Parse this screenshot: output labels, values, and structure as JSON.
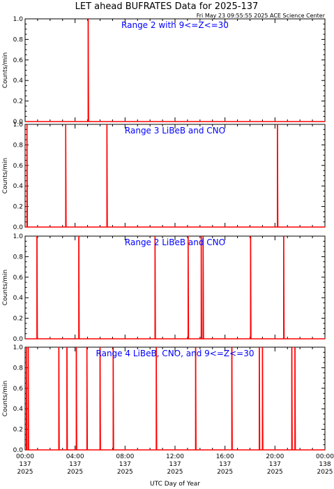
{
  "title": "LET ahead BUFRATES Data for 2025-137",
  "timestamp": "Fri May 23 09:55:55 2025 ACE Science Center",
  "chart_data": [
    {
      "type": "line",
      "panel_label": "Range 2 with 9<=Z<=30",
      "ylabel": "Counts/min",
      "ylim": [
        0,
        1.0
      ],
      "yticks": [
        "0.0",
        "0.2",
        "0.4",
        "0.6",
        "0.8",
        "1.0"
      ],
      "xlim_hours": [
        0,
        24
      ],
      "spikes": [
        {
          "hour": 5.05,
          "value": 1.0
        }
      ],
      "color": "#ff0000"
    },
    {
      "type": "line",
      "panel_label": "Range 3 LiBeB and CNO",
      "ylabel": "Counts/min",
      "ylim": [
        0,
        1.0
      ],
      "yticks": [
        "0.0",
        "0.2",
        "0.4",
        "0.6",
        "0.8",
        "1.0"
      ],
      "xlim_hours": [
        0,
        24
      ],
      "spikes": [
        {
          "hour": 0.15,
          "value": 1.0
        },
        {
          "hour": 3.25,
          "value": 1.0
        },
        {
          "hour": 6.55,
          "value": 1.0
        },
        {
          "hour": 20.2,
          "value": 1.0
        }
      ],
      "color": "#ff0000"
    },
    {
      "type": "line",
      "panel_label": "Range 2 LiBeB and CNO",
      "ylabel": "Counts/min",
      "ylim": [
        0,
        1.0
      ],
      "yticks": [
        "0.0",
        "0.2",
        "0.4",
        "0.6",
        "0.8",
        "1.0"
      ],
      "xlim_hours": [
        0,
        24
      ],
      "spikes": [
        {
          "hour": 0.95,
          "value": 1.0
        },
        {
          "hour": 4.3,
          "value": 1.0
        },
        {
          "hour": 10.4,
          "value": 1.0
        },
        {
          "hour": 13.05,
          "value": 1.0
        },
        {
          "hour": 14.1,
          "value": 1.0
        },
        {
          "hour": 14.25,
          "value": 1.0
        },
        {
          "hour": 18.05,
          "value": 1.0
        },
        {
          "hour": 20.7,
          "value": 1.0
        }
      ],
      "color": "#ff0000"
    },
    {
      "type": "line",
      "panel_label": "Range 4 LiBeB, CNO, and 9<=Z<=30",
      "ylabel": "Counts/min",
      "ylim": [
        0,
        1.0
      ],
      "yticks": [
        "0.0",
        "0.2",
        "0.4",
        "0.6",
        "0.8",
        "1.0"
      ],
      "xlim_hours": [
        0,
        24
      ],
      "spikes": [
        {
          "hour": 0.1,
          "value": 1.0
        },
        {
          "hour": 0.25,
          "value": 1.0
        },
        {
          "hour": 2.7,
          "value": 1.0
        },
        {
          "hour": 3.35,
          "value": 1.0
        },
        {
          "hour": 4.1,
          "value": 1.0
        },
        {
          "hour": 4.95,
          "value": 1.0
        },
        {
          "hour": 6.0,
          "value": 1.0
        },
        {
          "hour": 7.05,
          "value": 1.0
        },
        {
          "hour": 10.5,
          "value": 1.0
        },
        {
          "hour": 13.65,
          "value": 1.0
        },
        {
          "hour": 16.55,
          "value": 1.0
        },
        {
          "hour": 18.75,
          "value": 1.0
        },
        {
          "hour": 19.0,
          "value": 1.0
        },
        {
          "hour": 21.35,
          "value": 1.0
        },
        {
          "hour": 21.6,
          "value": 1.0
        }
      ],
      "color": "#ff0000"
    }
  ],
  "xaxis": {
    "label": "UTC Day of Year",
    "ticks": [
      {
        "hour": 0,
        "time": "00:00",
        "doy": "137",
        "year": "2025"
      },
      {
        "hour": 4,
        "time": "04:00",
        "doy": "137",
        "year": "2025"
      },
      {
        "hour": 8,
        "time": "08:00",
        "doy": "137",
        "year": "2025"
      },
      {
        "hour": 12,
        "time": "12:00",
        "doy": "137",
        "year": "2025"
      },
      {
        "hour": 16,
        "time": "16:00",
        "doy": "137",
        "year": "2025"
      },
      {
        "hour": 20,
        "time": "20:00",
        "doy": "137",
        "year": "2025"
      },
      {
        "hour": 24,
        "time": "00:00",
        "doy": "138",
        "year": "2025"
      }
    ]
  }
}
